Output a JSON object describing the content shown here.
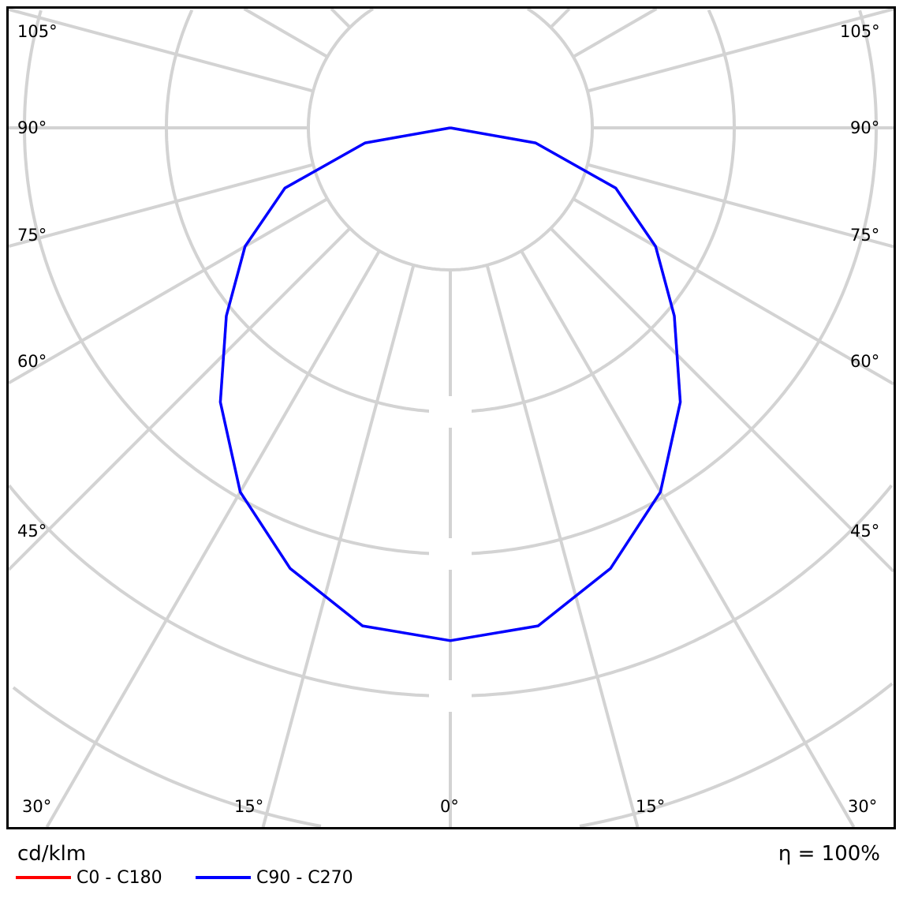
{
  "chart_data": {
    "type": "polar-line",
    "unit_label": "cd/klm",
    "efficiency_label": "η = 100%",
    "angle_labels": {
      "left": [
        "105°",
        "90°",
        "75°",
        "60°",
        "45°"
      ],
      "right": [
        "105°",
        "90°",
        "75°",
        "60°",
        "45°"
      ],
      "bottom": [
        "30°",
        "15°",
        "0°",
        "15°",
        "30°"
      ]
    },
    "grid": true,
    "radial_grid_step_deg": 15,
    "ring_count": 5,
    "legend_position": "bottom-left",
    "gamma_deg": [
      0,
      10,
      20,
      30,
      40,
      50,
      60,
      70,
      80,
      90
    ],
    "series": [
      {
        "name": "C0 - C180",
        "color": "#ff0000",
        "values": [
          3.61,
          3.56,
          3.3,
          2.96,
          2.52,
          2.06,
          1.67,
          1.24,
          0.61,
          0
        ]
      },
      {
        "name": "C90 - C270",
        "color": "#0000ff",
        "values": [
          3.61,
          3.56,
          3.3,
          2.96,
          2.52,
          2.06,
          1.67,
          1.24,
          0.61,
          0
        ]
      }
    ]
  }
}
